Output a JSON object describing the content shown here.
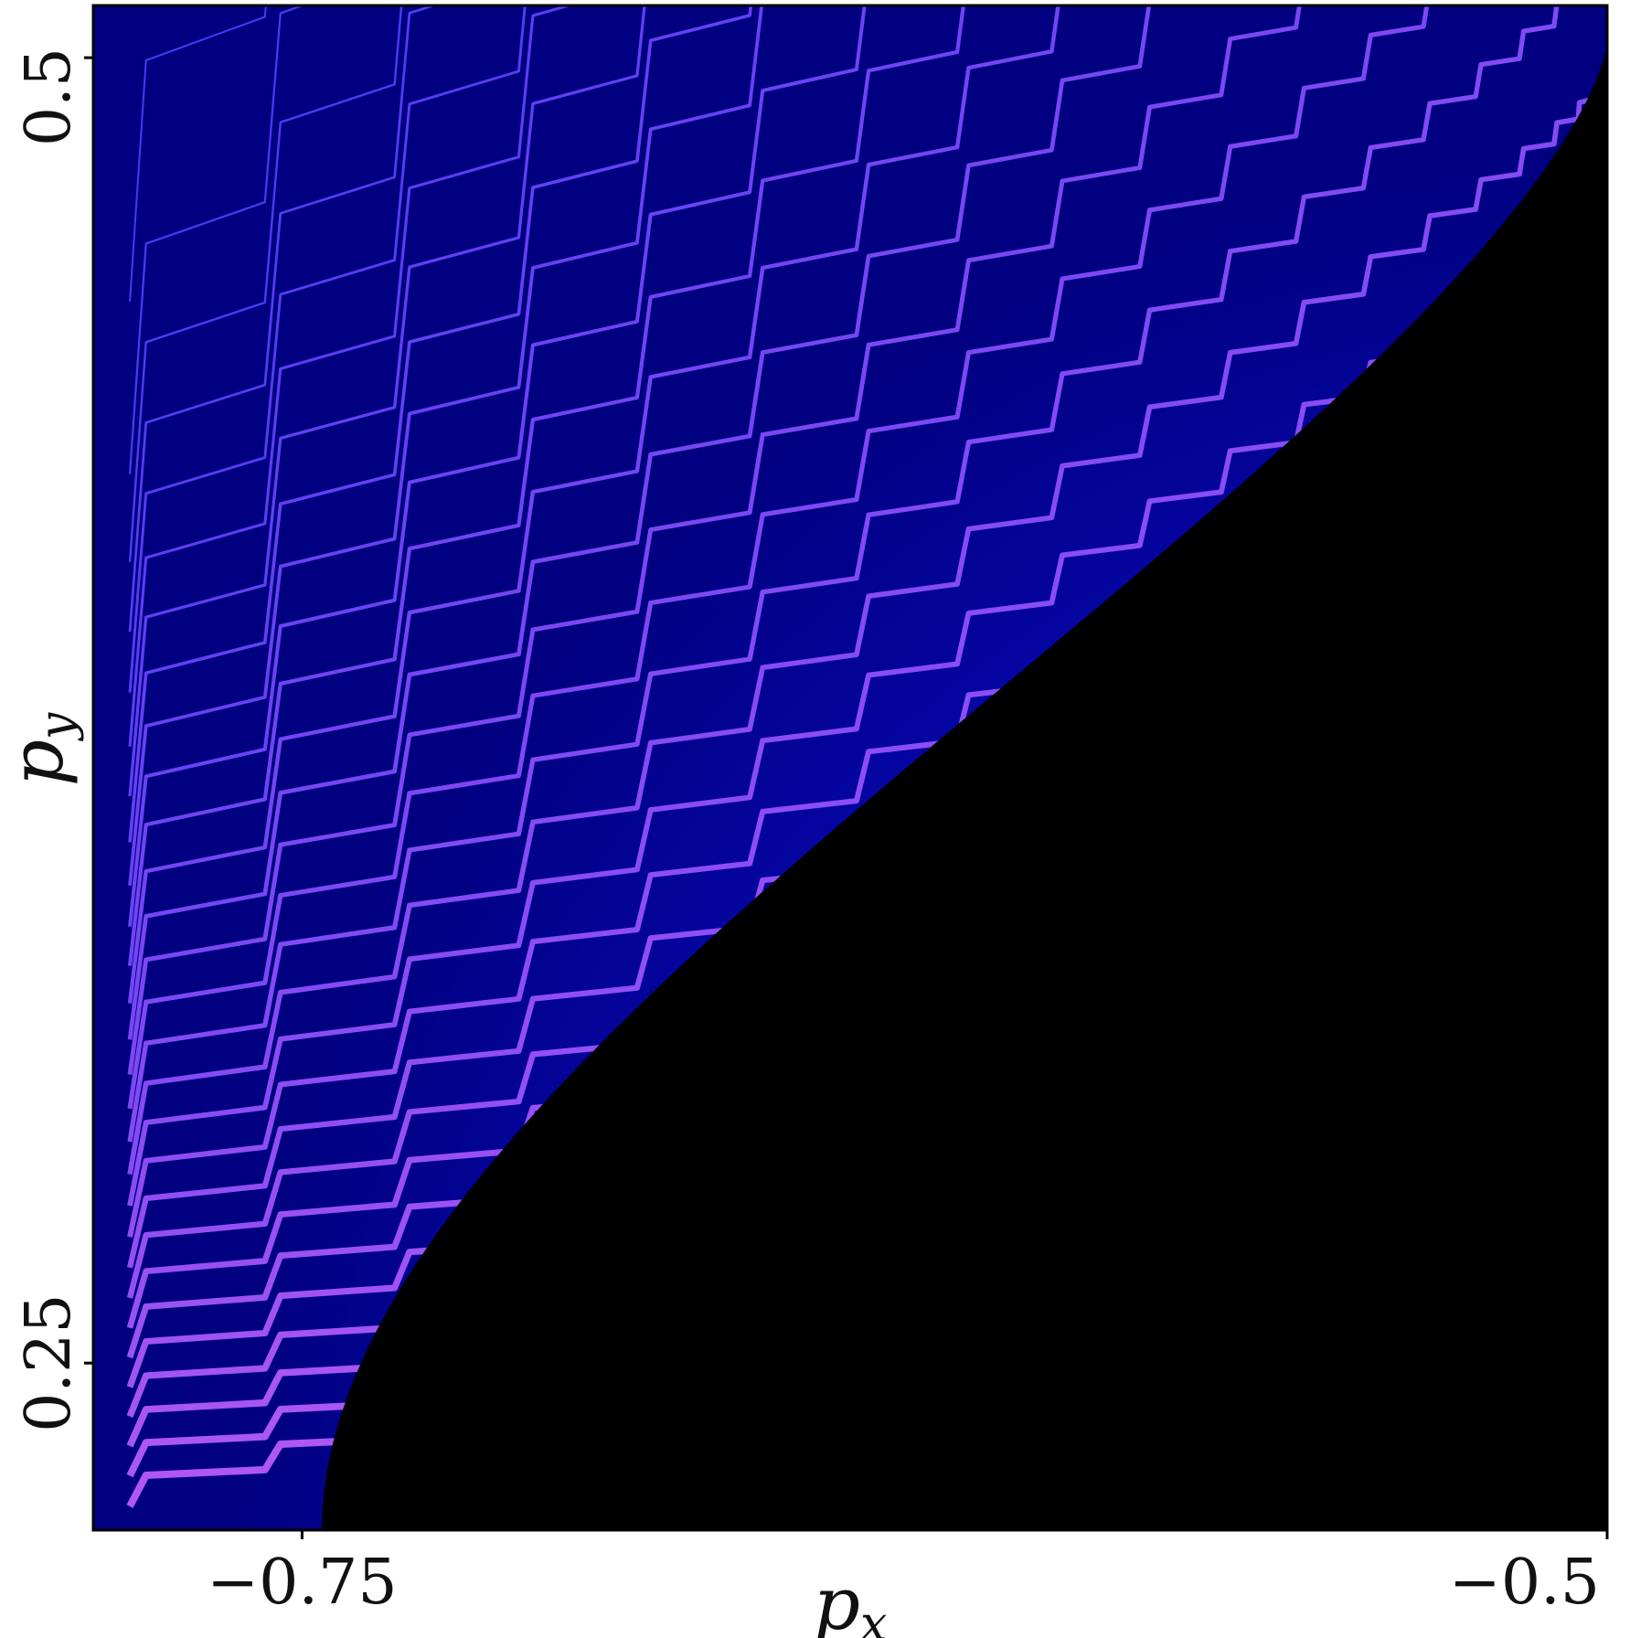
{
  "chart_data": {
    "type": "heatmap",
    "title": "",
    "xlabel": "p_x",
    "ylabel": "p_y",
    "xlabel_parts": {
      "base": "p",
      "sub": "x"
    },
    "ylabel_parts": {
      "base": "p",
      "sub": "y"
    },
    "xlim": [
      -0.79,
      -0.5
    ],
    "ylim": [
      0.218,
      0.51
    ],
    "xticks": [
      {
        "value": -0.75,
        "label": "−0.75"
      },
      {
        "value": -0.5,
        "label": "−0.5"
      }
    ],
    "yticks": [
      {
        "value": 0.25,
        "label": "0.25"
      },
      {
        "value": 0.5,
        "label": "0.5"
      }
    ],
    "grid": false,
    "colorbar": false,
    "colormap": [
      "#000000",
      "#000080",
      "#1a1aff",
      "#8a2be2",
      "#e060ff",
      "#ff9a8a",
      "#ffe070"
    ],
    "background_color": "#000080",
    "empty_region_color": "#000000",
    "stripe_color_low": "#3535ff",
    "stripe_color_high": "#f070ff",
    "pattern": "staircase stripes curving toward a black region at the lower-right"
  }
}
